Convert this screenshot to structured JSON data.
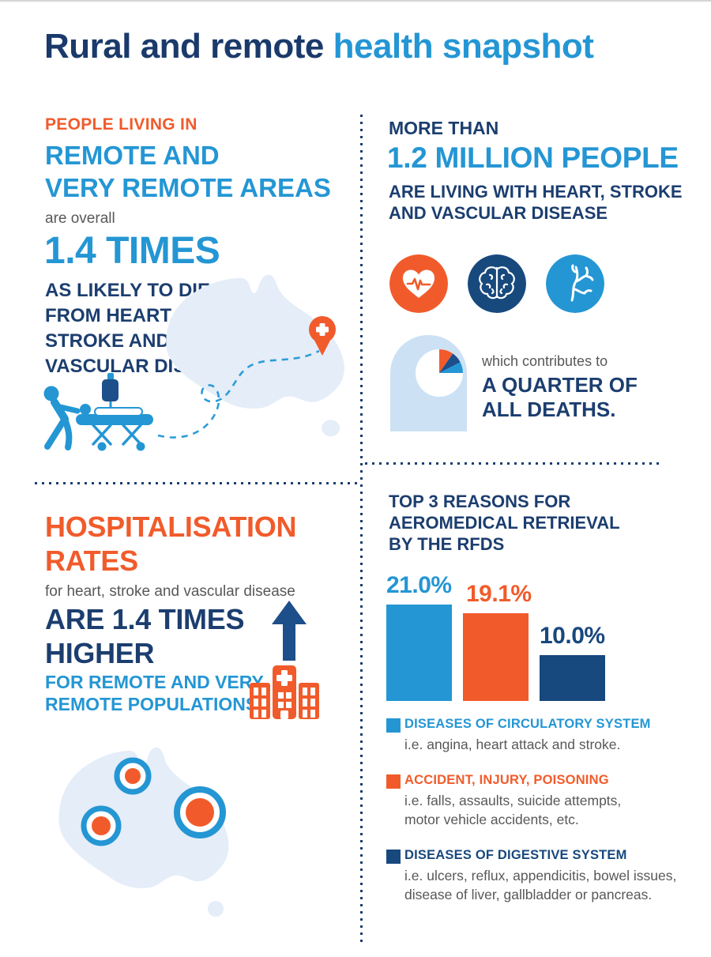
{
  "colors": {
    "navy_text": "#1c3e6f",
    "navy_title": "#1b3a6b",
    "blue": "#2496d4",
    "orange": "#f15b2b",
    "navy_ui": "#1d4f8a",
    "bar_navy": "#17487e",
    "grey_text": "#58585a",
    "map_fill": "#e4edf8",
    "head_fill": "#cde1f4"
  },
  "page": {
    "title_dark": "Rural and remote ",
    "title_accent": "health snapshot"
  },
  "top_left": {
    "kicker": "PEOPLE LIVING IN",
    "headline_lines": [
      "REMOTE AND",
      "VERY REMOTE AREAS"
    ],
    "lead_in": "are overall",
    "stat": "1.4 TIMES",
    "detail_lines": [
      "AS LIKELY TO DIE",
      "FROM HEART,",
      "STROKE AND",
      "VASCULAR DISEASE."
    ],
    "icons": [
      "australia-map",
      "location-pin",
      "ambulance-stretcher",
      "dashed-route"
    ]
  },
  "top_right": {
    "kicker": "MORE THAN",
    "stat": "1.2 MILLION PEOPLE",
    "detail_lines": [
      "ARE LIVING WITH HEART, STROKE",
      "AND VASCULAR DISEASE"
    ],
    "icons": [
      "heart-pulse",
      "brain",
      "artery",
      "head-quarter-pie"
    ],
    "contribution_lead": "which contributes to",
    "contribution_lines": [
      "A QUARTER OF",
      "ALL DEATHS."
    ]
  },
  "bottom_left": {
    "headline_lines": [
      "HOSPITALISATION",
      "RATES"
    ],
    "sub": "for heart, stroke and vascular disease",
    "stat_lines": [
      "ARE 1.4 TIMES",
      "HIGHER"
    ],
    "detail_lines": [
      "FOR REMOTE AND VERY",
      "REMOTE POPULATIONS."
    ],
    "icons": [
      "up-arrow",
      "hospital-building",
      "australia-map-targets"
    ]
  },
  "bottom_right": {
    "heading_lines": [
      "TOP 3 REASONS FOR",
      "AEROMEDICAL RETRIEVAL",
      "BY THE RFDS"
    ],
    "legend": [
      {
        "label": "DISEASES OF CIRCULATORY SYSTEM",
        "color": "#2496d4",
        "desc_lines": [
          "i.e. angina, heart attack and stroke."
        ]
      },
      {
        "label": "ACCIDENT, INJURY, POISONING",
        "color": "#f15b2b",
        "desc_lines": [
          "i.e. falls, assaults, suicide attempts,",
          "motor vehicle accidents, etc."
        ]
      },
      {
        "label": "DISEASES OF DIGESTIVE SYSTEM",
        "color": "#17487e",
        "desc_lines": [
          "i.e. ulcers, reflux, appendicitis, bowel issues,",
          "disease of liver, gallbladder or pancreas."
        ]
      }
    ]
  },
  "chart_data": {
    "type": "bar",
    "title": "TOP 3 REASONS FOR AEROMEDICAL RETRIEVAL BY THE RFDS",
    "categories": [
      "Diseases of circulatory system",
      "Accident, injury, poisoning",
      "Diseases of digestive system"
    ],
    "values": [
      21.0,
      19.1,
      10.0
    ],
    "value_labels": [
      "21.0%",
      "19.1%",
      "10.0%"
    ],
    "bar_colors": [
      "#2496d4",
      "#f15b2b",
      "#17487e"
    ],
    "unit": "%",
    "ylim": [
      0,
      25
    ],
    "grid": false,
    "legend_position": "below-left"
  }
}
